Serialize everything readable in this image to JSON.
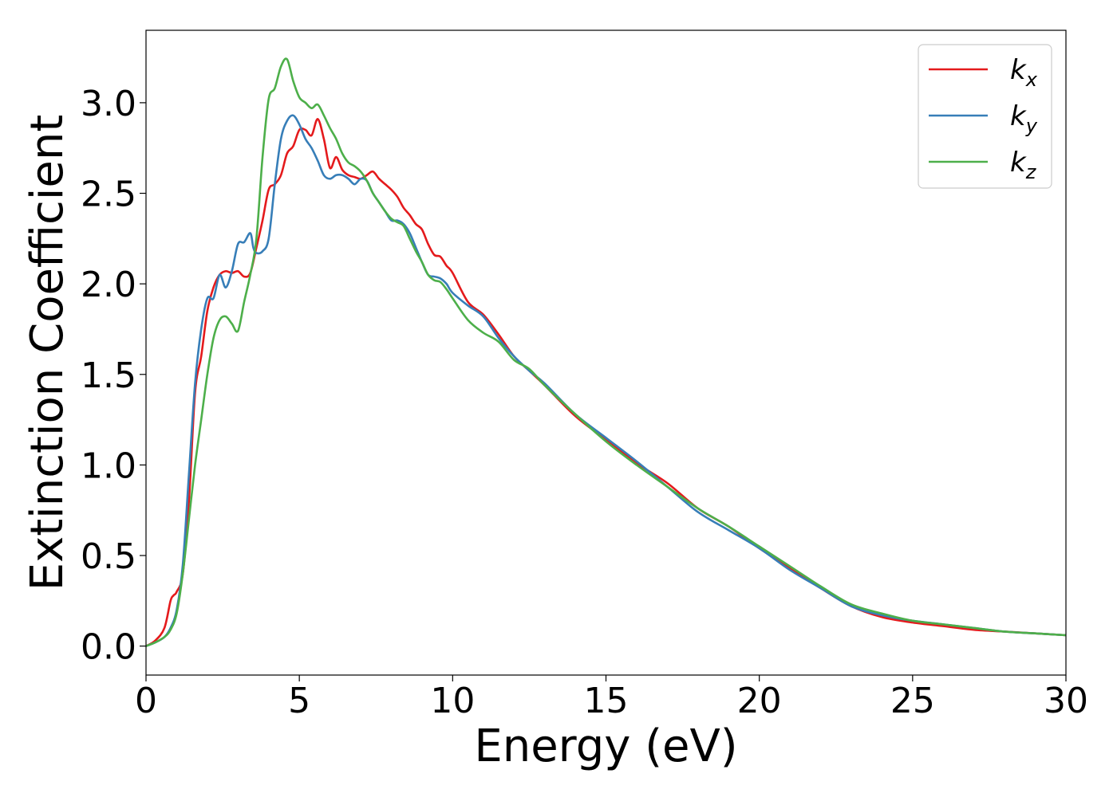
{
  "chart_data": {
    "type": "line",
    "title": "",
    "xlabel": "Energy (eV)",
    "ylabel": "Extinction Coefficient",
    "xlim": [
      0,
      30
    ],
    "ylim": [
      -0.16,
      3.4
    ],
    "xticks": [
      0,
      5,
      10,
      15,
      20,
      25,
      30
    ],
    "xtick_labels": [
      "0",
      "5",
      "10",
      "15",
      "20",
      "25",
      "30"
    ],
    "yticks": [
      0.0,
      0.5,
      1.0,
      1.5,
      2.0,
      2.5,
      3.0
    ],
    "ytick_labels": [
      "0.0",
      "0.5",
      "1.0",
      "1.5",
      "2.0",
      "2.5",
      "3.0"
    ],
    "grid": false,
    "legend_position": "top-right",
    "series": [
      {
        "name": "k_x",
        "label_base": "k",
        "label_sub": "x",
        "color": "#e41a1c",
        "x": [
          0,
          0.3,
          0.6,
          0.8,
          0.9,
          1.0,
          1.2,
          1.4,
          1.6,
          1.8,
          2.0,
          2.2,
          2.4,
          2.6,
          2.8,
          3.0,
          3.2,
          3.4,
          3.6,
          3.8,
          4.0,
          4.2,
          4.4,
          4.6,
          4.8,
          5.0,
          5.2,
          5.4,
          5.6,
          5.8,
          6.0,
          6.2,
          6.4,
          6.6,
          6.8,
          7.0,
          7.2,
          7.4,
          7.6,
          7.8,
          8.0,
          8.2,
          8.4,
          8.6,
          8.8,
          9.0,
          9.2,
          9.4,
          9.6,
          9.8,
          10.0,
          10.5,
          11.0,
          11.5,
          12.0,
          12.5,
          13.0,
          14.0,
          15.0,
          16.0,
          17.0,
          18.0,
          19.0,
          20.0,
          21.0,
          22.0,
          23.0,
          24.0,
          25.0,
          26.0,
          27.0,
          28.0,
          29.0,
          30.0
        ],
        "values": [
          0.0,
          0.03,
          0.1,
          0.25,
          0.28,
          0.3,
          0.4,
          0.8,
          1.4,
          1.6,
          1.85,
          1.98,
          2.05,
          2.07,
          2.06,
          2.07,
          2.04,
          2.06,
          2.2,
          2.35,
          2.52,
          2.55,
          2.6,
          2.72,
          2.76,
          2.85,
          2.85,
          2.82,
          2.91,
          2.8,
          2.64,
          2.7,
          2.63,
          2.6,
          2.59,
          2.58,
          2.6,
          2.62,
          2.58,
          2.55,
          2.52,
          2.48,
          2.42,
          2.38,
          2.33,
          2.3,
          2.22,
          2.16,
          2.15,
          2.1,
          2.06,
          1.9,
          1.83,
          1.72,
          1.6,
          1.52,
          1.44,
          1.27,
          1.14,
          1.01,
          0.9,
          0.76,
          0.66,
          0.54,
          0.43,
          0.32,
          0.22,
          0.16,
          0.13,
          0.11,
          0.09,
          0.08,
          0.07,
          0.06
        ]
      },
      {
        "name": "k_y",
        "label_base": "k",
        "label_sub": "y",
        "color": "#377eb8",
        "x": [
          0,
          0.3,
          0.6,
          0.8,
          1.0,
          1.2,
          1.4,
          1.6,
          1.8,
          2.0,
          2.2,
          2.4,
          2.6,
          2.8,
          3.0,
          3.2,
          3.4,
          3.5,
          3.6,
          3.8,
          4.0,
          4.2,
          4.4,
          4.6,
          4.8,
          5.0,
          5.2,
          5.4,
          5.6,
          5.8,
          6.0,
          6.2,
          6.4,
          6.6,
          6.8,
          7.0,
          7.2,
          7.4,
          7.6,
          7.8,
          8.0,
          8.2,
          8.4,
          8.6,
          8.8,
          9.0,
          9.2,
          9.4,
          9.6,
          9.8,
          10.0,
          10.5,
          11.0,
          11.5,
          12.0,
          12.5,
          13.0,
          14.0,
          15.0,
          16.0,
          17.0,
          18.0,
          19.0,
          20.0,
          21.0,
          22.0,
          23.0,
          24.0,
          25.0,
          26.0,
          27.0,
          28.0,
          29.0,
          30.0
        ],
        "values": [
          0.0,
          0.02,
          0.05,
          0.1,
          0.2,
          0.45,
          0.95,
          1.45,
          1.75,
          1.92,
          1.92,
          2.05,
          1.98,
          2.07,
          2.22,
          2.23,
          2.28,
          2.2,
          2.17,
          2.18,
          2.25,
          2.55,
          2.8,
          2.9,
          2.93,
          2.88,
          2.8,
          2.75,
          2.68,
          2.6,
          2.58,
          2.6,
          2.6,
          2.58,
          2.55,
          2.58,
          2.57,
          2.5,
          2.45,
          2.4,
          2.35,
          2.35,
          2.33,
          2.28,
          2.2,
          2.12,
          2.05,
          2.04,
          2.03,
          2.0,
          1.95,
          1.88,
          1.82,
          1.7,
          1.6,
          1.52,
          1.45,
          1.28,
          1.15,
          1.02,
          0.88,
          0.74,
          0.64,
          0.54,
          0.42,
          0.32,
          0.22,
          0.17,
          0.14,
          0.12,
          0.1,
          0.08,
          0.07,
          0.06
        ]
      },
      {
        "name": "k_z",
        "label_base": "k",
        "label_sub": "z",
        "color": "#4daf4a",
        "x": [
          0,
          0.3,
          0.6,
          0.8,
          1.0,
          1.2,
          1.4,
          1.6,
          1.8,
          2.0,
          2.2,
          2.4,
          2.6,
          2.8,
          3.0,
          3.2,
          3.4,
          3.6,
          3.8,
          4.0,
          4.2,
          4.4,
          4.6,
          4.8,
          5.0,
          5.2,
          5.4,
          5.6,
          5.8,
          6.0,
          6.2,
          6.4,
          6.6,
          6.8,
          7.0,
          7.2,
          7.4,
          7.6,
          7.8,
          8.0,
          8.2,
          8.4,
          8.6,
          8.8,
          9.0,
          9.2,
          9.4,
          9.6,
          9.8,
          10.0,
          10.5,
          11.0,
          11.5,
          12.0,
          12.5,
          13.0,
          14.0,
          15.0,
          16.0,
          17.0,
          18.0,
          19.0,
          20.0,
          21.0,
          22.0,
          23.0,
          24.0,
          25.0,
          26.0,
          27.0,
          28.0,
          29.0,
          30.0
        ],
        "values": [
          0.0,
          0.02,
          0.05,
          0.09,
          0.18,
          0.4,
          0.7,
          1.0,
          1.25,
          1.5,
          1.7,
          1.8,
          1.82,
          1.78,
          1.74,
          1.9,
          2.05,
          2.25,
          2.7,
          3.02,
          3.08,
          3.2,
          3.24,
          3.12,
          3.03,
          3.0,
          2.97,
          2.99,
          2.93,
          2.86,
          2.8,
          2.72,
          2.67,
          2.65,
          2.62,
          2.57,
          2.5,
          2.45,
          2.4,
          2.36,
          2.34,
          2.32,
          2.25,
          2.18,
          2.12,
          2.05,
          2.02,
          2.01,
          1.97,
          1.92,
          1.8,
          1.73,
          1.68,
          1.58,
          1.53,
          1.44,
          1.28,
          1.13,
          1.0,
          0.88,
          0.76,
          0.66,
          0.55,
          0.44,
          0.33,
          0.23,
          0.18,
          0.14,
          0.12,
          0.1,
          0.08,
          0.07,
          0.06
        ]
      }
    ]
  }
}
